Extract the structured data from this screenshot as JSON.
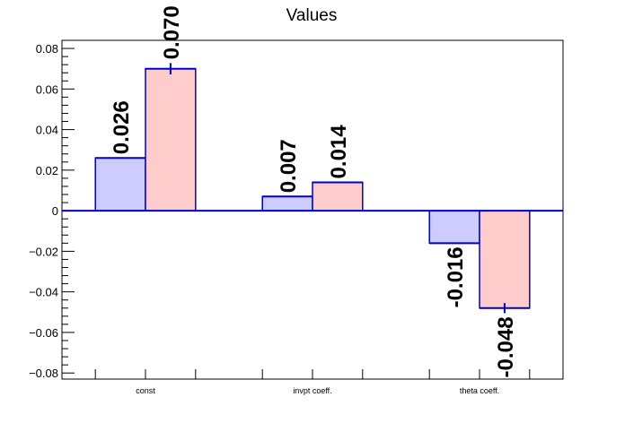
{
  "chart_data": {
    "type": "bar",
    "title": "Values",
    "xlabel": "",
    "ylabel": "",
    "categories": [
      "const",
      "invpt coeff.",
      "theta coeff."
    ],
    "series": [
      {
        "values": [
          0.026,
          0.007,
          -0.016
        ],
        "errors": [
          0,
          0,
          0
        ],
        "labels": [
          "0.026",
          "0.007",
          "-0.016"
        ],
        "color": "#ccccff"
      },
      {
        "values": [
          0.07,
          0.014,
          -0.048
        ],
        "errors": [
          0.0028,
          0,
          0.0025
        ],
        "labels": [
          "0.070",
          "0.014",
          "-0.048"
        ],
        "color": "#ffcccc"
      }
    ],
    "ylim": [
      -0.083,
      0.084
    ],
    "yticks": [
      {
        "value": -0.08,
        "label": "−0.08"
      },
      {
        "value": -0.06,
        "label": "−0.06"
      },
      {
        "value": -0.04,
        "label": "−0.04"
      },
      {
        "value": -0.02,
        "label": "−0.02"
      },
      {
        "value": 0,
        "label": "0"
      },
      {
        "value": 0.02,
        "label": "0.02"
      },
      {
        "value": 0.04,
        "label": "0.04"
      },
      {
        "value": 0.06,
        "label": "0.06"
      },
      {
        "value": 0.08,
        "label": "0.08"
      }
    ],
    "bar_edge_color": "#0000cc",
    "grid": false,
    "legend": "none"
  }
}
